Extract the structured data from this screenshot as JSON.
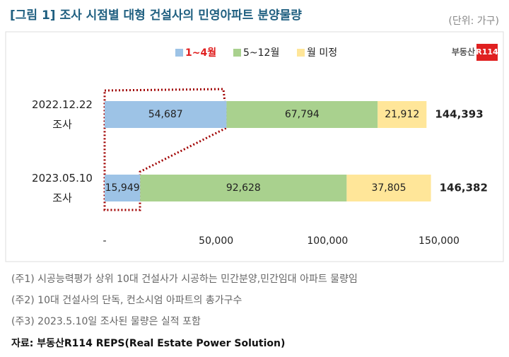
{
  "chart_data": {
    "type": "stacked-bar-horizontal",
    "title": "[그림 1] 조사 시점별 대형 건설사의 민영아파트 분양물량",
    "unit": "(단위: 가구)",
    "logo": {
      "text": "부동산",
      "badge": "R114"
    },
    "categories": [
      "2022.12.22 조사",
      "2023.05.10 조사"
    ],
    "series": [
      {
        "name": "1~4월",
        "color": "#9dc3e6",
        "values": [
          54687,
          15949
        ],
        "value_labels": [
          "54,687",
          "15,949"
        ]
      },
      {
        "name": "5~12월",
        "color": "#a9d18e",
        "values": [
          67794,
          92628
        ],
        "value_labels": [
          "67,794",
          "92,628"
        ]
      },
      {
        "name": "월 미정",
        "color": "#ffe699",
        "values": [
          21912,
          37805
        ],
        "value_labels": [
          "21,912",
          "37,805"
        ]
      }
    ],
    "totals": [
      144393,
      146382
    ],
    "total_labels": [
      "144,393",
      "146,382"
    ],
    "xlim": [
      0,
      150000
    ],
    "xticks": [
      {
        "value": 0,
        "label": "-"
      },
      {
        "value": 50000,
        "label": "50,000"
      },
      {
        "value": 100000,
        "label": "100,000"
      },
      {
        "value": 150000,
        "label": "150,000"
      }
    ],
    "legend": "top",
    "notes": [
      "(주1) 시공능력평가 상위 10대 건설사가 시공하는 민간분양,민간임대 아파트 물량임",
      "(주2) 10대 건설사의 단독, 컨소시엄 아파트의 총가구수",
      "(주3) 2023.5.10일 조사된 물량은 실적 포함"
    ],
    "source": "자료: 부동산R114 REPS(Real Estate Power Solution)"
  }
}
